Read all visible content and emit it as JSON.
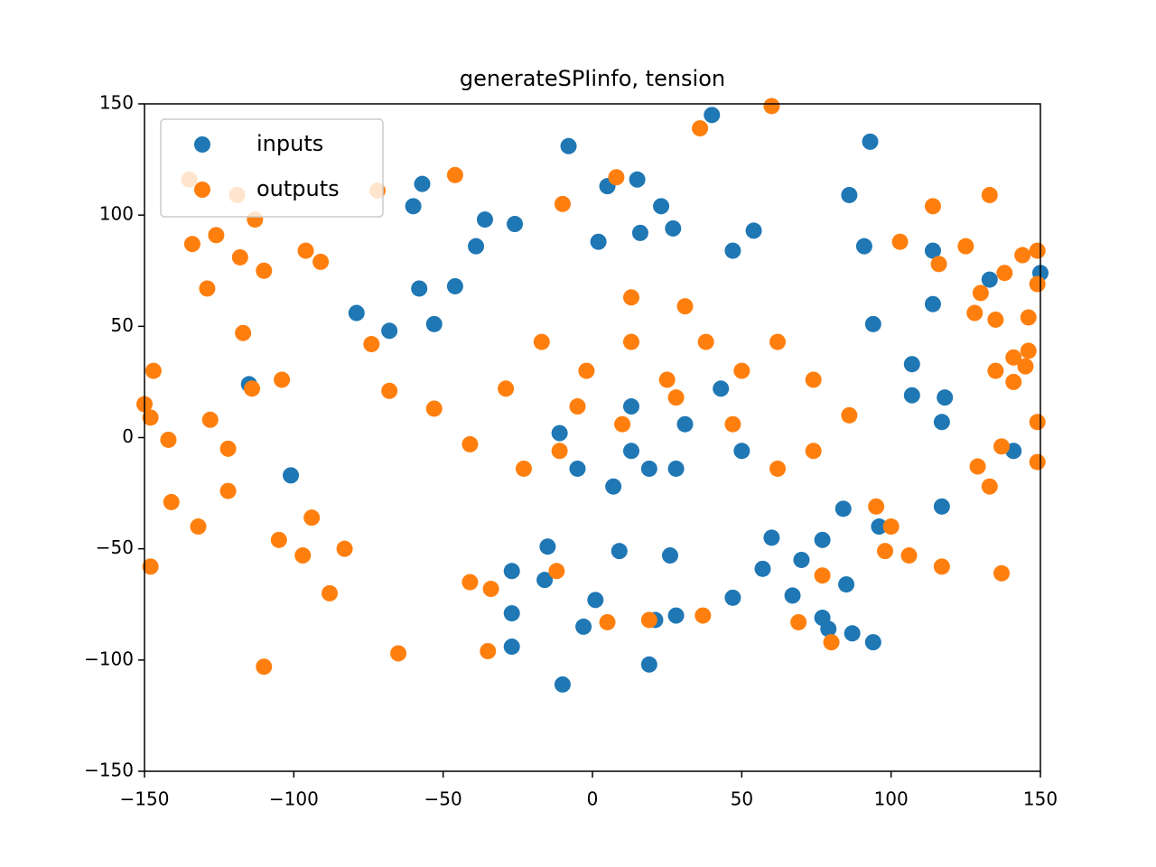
{
  "chart_data": {
    "type": "scatter",
    "title": "generateSPIinfo, tension",
    "xlim": [
      -150,
      150
    ],
    "ylim": [
      -150,
      150
    ],
    "xticks": [
      {
        "value": -150,
        "label": "−150"
      },
      {
        "value": -100,
        "label": "−100"
      },
      {
        "value": -50,
        "label": "−50"
      },
      0,
      50,
      100,
      150
    ],
    "yticks": [
      {
        "value": -150,
        "label": "−150"
      },
      {
        "value": -100,
        "label": "−100"
      },
      {
        "value": -50,
        "label": "−50"
      },
      0,
      50,
      100,
      150
    ],
    "legend": "upper left",
    "series": [
      {
        "name": "inputs",
        "color": "#1f77b4",
        "x": [
          40,
          -8,
          93,
          15,
          5,
          -57,
          86,
          -60,
          23,
          -36,
          -26,
          114,
          133,
          -79,
          -115,
          -101,
          117,
          96,
          141,
          -15,
          -27,
          -16,
          1,
          -3,
          -27,
          -27,
          -10,
          19,
          21,
          28,
          47,
          67,
          77,
          79,
          87,
          94,
          85,
          9,
          26,
          57,
          60,
          70,
          77,
          84,
          118,
          117,
          107,
          114,
          107,
          94,
          91,
          54,
          47,
          2,
          16,
          27,
          -39,
          -46,
          -58,
          -68,
          -53,
          150,
          13,
          19,
          7,
          -5,
          31,
          43,
          -11,
          28,
          50,
          13
        ],
        "y": [
          145,
          131,
          133,
          116,
          113,
          114,
          109,
          104,
          104,
          98,
          96,
          84,
          71,
          56,
          24,
          -17,
          -31,
          -40,
          -6,
          -49,
          -60,
          -64,
          -73,
          -85,
          -79,
          -94,
          -111,
          -102,
          -82,
          -80,
          -72,
          -71,
          -81,
          -86,
          -88,
          -92,
          -66,
          -51,
          -53,
          -59,
          -45,
          -55,
          -46,
          -32,
          18,
          7,
          33,
          60,
          19,
          51,
          86,
          93,
          84,
          88,
          92,
          94,
          86,
          68,
          67,
          48,
          51,
          74,
          -6,
          -14,
          -22,
          -14,
          6,
          22,
          2,
          -14,
          -6,
          14
        ]
      },
      {
        "name": "outputs",
        "color": "#ff7f0e",
        "x": [
          60,
          36,
          -46,
          8,
          -135,
          -72,
          -10,
          133,
          114,
          -119,
          -113,
          -126,
          -134,
          -118,
          -129,
          -110,
          -96,
          -91,
          103,
          149,
          144,
          125,
          116,
          138,
          130,
          146,
          128,
          135,
          149,
          146,
          141,
          145,
          135,
          141,
          149,
          149,
          137,
          133,
          129,
          137,
          117,
          106,
          98,
          100,
          95,
          80,
          69,
          77,
          -147,
          -148,
          -150,
          -148,
          -142,
          -141,
          -132,
          -122,
          -122,
          -128,
          -110,
          -88,
          -97,
          -83,
          -105,
          -94,
          -65,
          -35,
          5,
          19,
          37,
          -12,
          -41,
          -34,
          -117,
          -114,
          -104,
          -74,
          -68,
          -53,
          -41,
          -29,
          -17,
          -2,
          13,
          25,
          38,
          50,
          62,
          74,
          86,
          13,
          31,
          -5,
          10,
          28,
          47,
          -23,
          -11,
          62,
          74
        ],
        "y": [
          149,
          139,
          118,
          117,
          116,
          111,
          105,
          109,
          104,
          109,
          98,
          91,
          87,
          81,
          67,
          75,
          84,
          79,
          88,
          84,
          82,
          86,
          78,
          74,
          65,
          54,
          56,
          53,
          69,
          39,
          36,
          32,
          30,
          25,
          7,
          -11,
          -4,
          -22,
          -13,
          -61,
          -58,
          -53,
          -51,
          -40,
          -31,
          -92,
          -83,
          -62,
          30,
          -58,
          15,
          9,
          -1,
          -29,
          -40,
          -5,
          -24,
          8,
          -103,
          -70,
          -53,
          -50,
          -46,
          -36,
          -97,
          -96,
          -83,
          -82,
          -80,
          -60,
          -65,
          -68,
          47,
          22,
          26,
          42,
          21,
          13,
          -3,
          22,
          43,
          30,
          43,
          26,
          43,
          30,
          43,
          26,
          10,
          63,
          59,
          14,
          6,
          18,
          6,
          -14,
          -6,
          -14,
          -6
        ]
      }
    ]
  }
}
